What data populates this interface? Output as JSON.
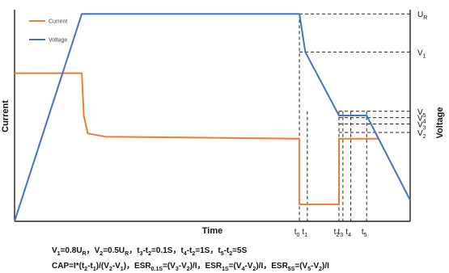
{
  "chart_data": {
    "type": "line",
    "xlabel": "Time",
    "ylabel_left": "Current",
    "ylabel_right": "Voltage",
    "legend": {
      "placement": "top-left",
      "entries": [
        "Current",
        "Voltage"
      ]
    },
    "grid": false,
    "x_range": [
      0,
      10
    ],
    "current_range": [
      0,
      1
    ],
    "voltage_range": [
      0,
      1
    ],
    "time_ticks": [
      {
        "label": "t0",
        "x": 7.2
      },
      {
        "label": "t1",
        "x": 7.4
      },
      {
        "label": "t2",
        "x": 8.2
      },
      {
        "label": "t3",
        "x": 8.3
      },
      {
        "label": "t4",
        "x": 8.5
      },
      {
        "label": "t5",
        "x": 8.9
      }
    ],
    "voltage_ticks": [
      {
        "label": "UR",
        "y": 0.98
      },
      {
        "label": "V1",
        "y": 0.8
      },
      {
        "label": "V5",
        "y": 0.52
      },
      {
        "label": "V4",
        "y": 0.49
      },
      {
        "label": "V3",
        "y": 0.46
      },
      {
        "label": "V2",
        "y": 0.42
      }
    ],
    "series": [
      {
        "name": "Current",
        "color": "#ED7D31",
        "x": [
          0,
          1.7,
          1.75,
          1.85,
          2.3,
          7.2,
          7.2,
          8.2,
          8.2,
          9.2
        ],
        "y": [
          0.7,
          0.7,
          0.5,
          0.415,
          0.4,
          0.39,
          0.08,
          0.08,
          0.39,
          0.39
        ]
      },
      {
        "name": "Voltage",
        "color": "#4472C4",
        "x": [
          0,
          1.7,
          7.2,
          7.35,
          8.2,
          8.9,
          10.0
        ],
        "y": [
          0.0,
          0.98,
          0.98,
          0.8,
          0.5,
          0.5,
          0.1
        ]
      }
    ],
    "formulas": {
      "line1": "V1=0.8UR，V2=0.5UR，t3-t2=0.1S，t4-t2=1S，t5-t2=5S",
      "line2": "CAP=I*(t2-t1)/(V2-V1)，ESR0.1S=(V3-V2)/I，ESR1S=(V4-V2)/I，ESR5S=(V5-V2)/I"
    }
  }
}
